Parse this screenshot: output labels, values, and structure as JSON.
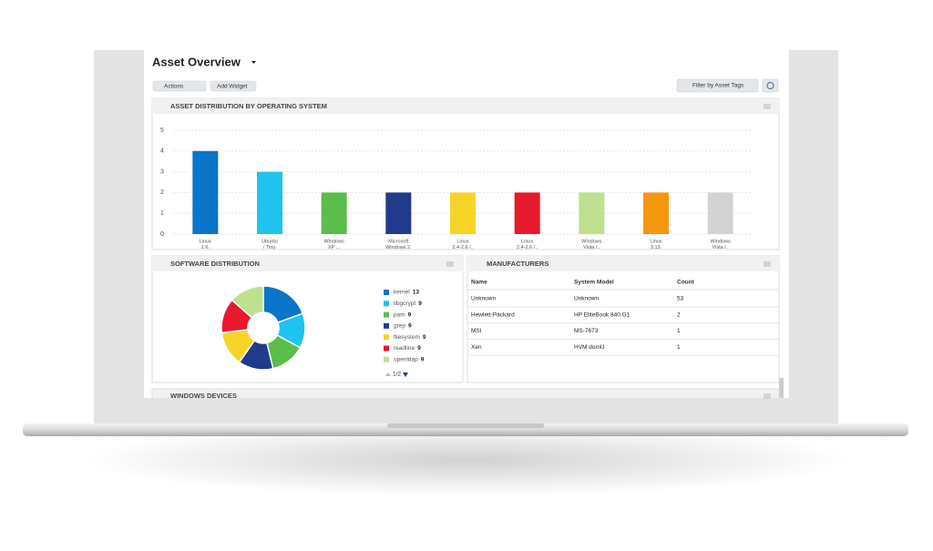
{
  "header": {
    "title": "Asset Overview"
  },
  "toolbar": {
    "actions": "Actions",
    "add_widget": "Add Widget",
    "filter": "Filter by Asset Tags"
  },
  "os_widget": {
    "title": "ASSET DISTRIBUTION BY OPERATING SYSTEM",
    "chart_data": {
      "type": "bar",
      "categories": [
        [
          "Linux",
          "2.6."
        ],
        [
          "Ubuntu",
          "/ Tiny."
        ],
        [
          "Windows",
          "XP ..."
        ],
        [
          "Microsoft",
          "Windows 2."
        ],
        [
          "Linux",
          "2.4-2.6 /.."
        ],
        [
          "Linux",
          "2.4-2.6 /.."
        ],
        [
          "Windows",
          "Vista /.."
        ],
        [
          "Linux",
          "3.13."
        ],
        [
          "Windows",
          "Vista /.."
        ]
      ],
      "values": [
        4,
        3,
        2,
        2,
        2,
        2,
        2,
        2,
        2
      ],
      "colors": [
        "#0a75c9",
        "#1ec3f0",
        "#5bbd4a",
        "#213b8c",
        "#f7d528",
        "#e8192c",
        "#bfe08f",
        "#f7960f",
        "#d3d3d3"
      ],
      "ylim": [
        0,
        5
      ],
      "yticks": [
        0,
        1,
        2,
        3,
        4,
        5
      ],
      "grid": true
    }
  },
  "software_widget": {
    "title": "SOFTWARE DISTRIBUTION",
    "chart_data": {
      "type": "pie",
      "categories": [
        "kernel",
        "libgcrypt",
        "pam",
        "grep",
        "filesystem",
        "readline",
        "openldap"
      ],
      "values": [
        13,
        9,
        9,
        9,
        9,
        9,
        9
      ],
      "colors": [
        "#0a75c9",
        "#1ec3f0",
        "#5bbd4a",
        "#213b8c",
        "#f7d528",
        "#e8192c",
        "#bfe08f"
      ]
    },
    "pager": "1/2"
  },
  "manufacturers_widget": {
    "title": "MANUFACTURERS",
    "table": {
      "header": [
        "Name",
        "System Model",
        "Count"
      ],
      "rows": [
        [
          "Unknown",
          "Unknown",
          "53"
        ],
        [
          "Hewlett-Packard",
          "HP EliteBook 840 G1",
          "2"
        ],
        [
          "MSI",
          "MS-7673",
          "1"
        ],
        [
          "Xen",
          "HVM domU",
          "1"
        ]
      ]
    }
  },
  "windows_widget": {
    "title": "WINDOWS DEVICES"
  }
}
